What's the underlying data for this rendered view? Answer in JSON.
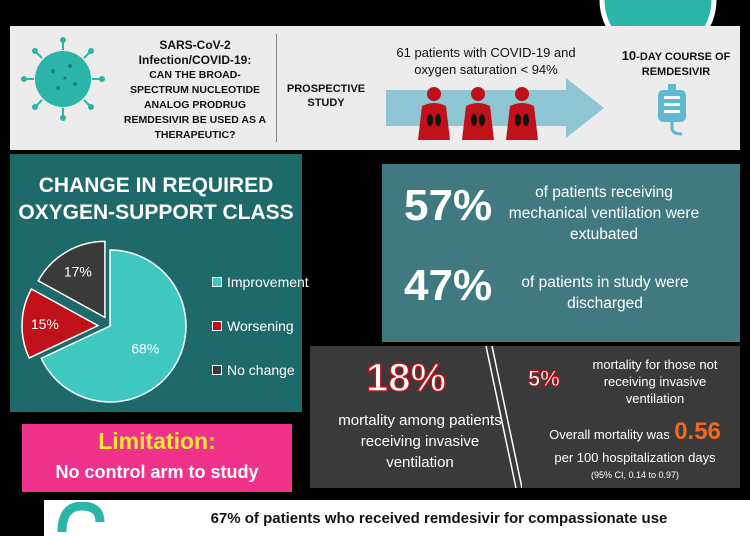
{
  "top": {
    "question_title": "SARS-CoV-2 Infection/COVID-19:",
    "question_body": "CAN THE BROAD-SPECTRUM NUCLEOTIDE ANALOG PRODRUG REMDESIVIR BE USED AS A THERAPEUTIC?",
    "study_type": "PROSPECTIVE STUDY",
    "patients_line1": "61 patients with COVID-19 and",
    "patients_line2": "oxygen saturation < 94%",
    "course_num": "10",
    "course_rest": "-DAY COURSE OF",
    "course_drug": "REMDESIVIR"
  },
  "pie": {
    "title_line1": "CHANGE IN REQUIRED",
    "title_line2": "OXYGEN-SUPPORT CLASS",
    "legend": [
      {
        "label": "Improvement",
        "color": "#3ec8bf"
      },
      {
        "label": "Worsening",
        "color": "#c0111a"
      },
      {
        "label": "No change",
        "color": "#3a3a3a"
      }
    ]
  },
  "chart_data": {
    "type": "pie",
    "categories": [
      "Improvement",
      "Worsening",
      "No change"
    ],
    "values": [
      68,
      15,
      17
    ],
    "labels": [
      "68%",
      "15%",
      "17%"
    ],
    "colors": [
      "#3ec8bf",
      "#c0111a",
      "#3a3a3a"
    ],
    "title": "CHANGE IN REQUIRED OXYGEN-SUPPORT CLASS",
    "legend_position": "right"
  },
  "stats": {
    "extubated_pct": "57%",
    "extubated_desc": "of patients receiving mechanical ventilation were extubated",
    "discharged_pct": "47%",
    "discharged_desc": "of patients in study were discharged"
  },
  "mortality": {
    "invasive_pct": "18%",
    "invasive_desc": "mortality among patients receiving invasive ventilation",
    "noninvasive_pct": "5%",
    "noninvasive_desc": "mortality for those not receiving invasive ventilation",
    "overall_prefix": "Overall mortality was",
    "overall_value": "0.56",
    "overall_suffix": "per 100 hospitalization days",
    "ci": "(95% CI, 0.14 to 0.97)"
  },
  "limitation": {
    "title": "Limitation:",
    "desc": "No control arm to study"
  },
  "bottom": {
    "text": "67% of patients who received remdesivir for compassionate use"
  },
  "colors": {
    "teal_dark": "#1e6a6a",
    "teal_light": "#3ec8bf",
    "red": "#c0111a",
    "pink": "#f0328a",
    "yellow": "#f5e534",
    "orange": "#f06a1e"
  }
}
